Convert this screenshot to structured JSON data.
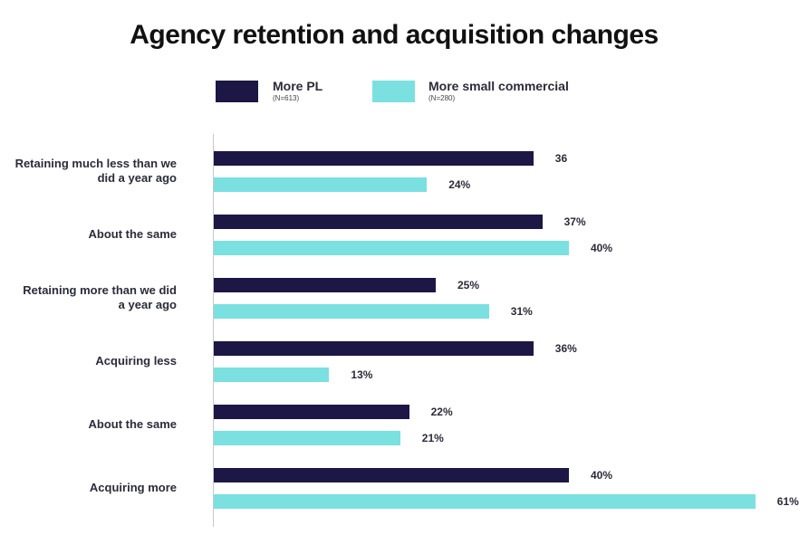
{
  "chart_data": {
    "type": "bar",
    "orientation": "horizontal",
    "title": "Agency retention and acquisition changes",
    "categories": [
      "Retaining much less than we did a year ago",
      "About the same",
      "Retaining more than we did a year ago",
      "Acquiring less",
      "About the same",
      "Acquiring more"
    ],
    "series": [
      {
        "name": "More PL",
        "note": "(N=613)",
        "color": "#1c1745",
        "values": [
          36,
          37,
          25,
          36,
          22,
          40
        ],
        "labels": [
          "36",
          "37%",
          "25%",
          "36%",
          "22%",
          "40%"
        ]
      },
      {
        "name": "More small commercial",
        "note": "(N=280)",
        "color": "#7be0e0",
        "values": [
          24,
          40,
          31,
          13,
          21,
          61
        ],
        "labels": [
          "24%",
          "40%",
          "31%",
          "13%",
          "21%",
          "61%"
        ]
      }
    ],
    "unit": "%",
    "legend_position": "top",
    "grid": false
  }
}
